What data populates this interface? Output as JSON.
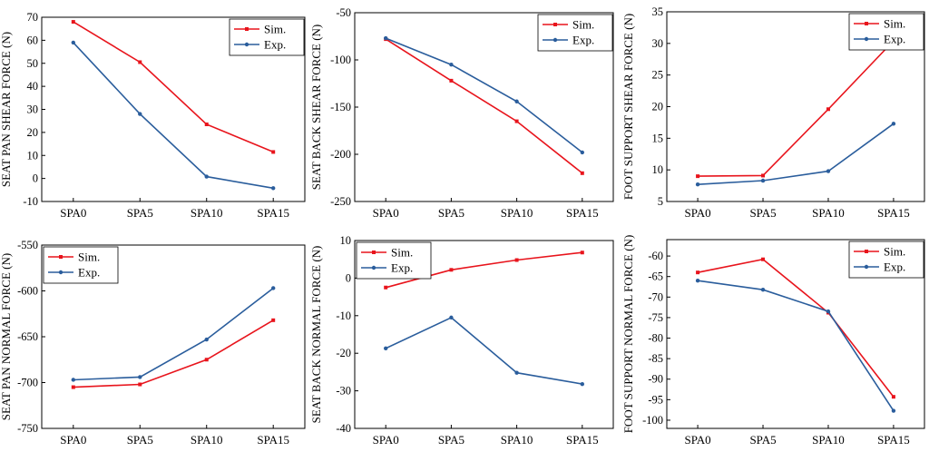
{
  "colors": {
    "sim": "#e8141c",
    "exp": "#2a5d9c",
    "axis": "#000000",
    "background": "#ffffff"
  },
  "chart_data": [
    {
      "type": "line",
      "ylabel": "SEAT PAN SHEAR FORCE (N)",
      "categories": [
        "SPA0",
        "SPA5",
        "SPA10",
        "SPA15"
      ],
      "ylim": [
        -10,
        70
      ],
      "yticks": [
        -10,
        0,
        10,
        20,
        30,
        40,
        50,
        60,
        70
      ],
      "ytick_labels": [
        "-10",
        "0",
        "10",
        "20",
        "30",
        "40",
        "50",
        "60",
        "70"
      ],
      "legend_position": "top-right",
      "series": [
        {
          "name": "Sim.",
          "values": [
            68,
            50.5,
            23.5,
            11.5
          ]
        },
        {
          "name": "Exp.",
          "values": [
            59,
            28,
            0.8,
            -4.2
          ]
        }
      ]
    },
    {
      "type": "line",
      "ylabel": "SEAT BACK SHEAR FORCE  (N)",
      "categories": [
        "SPA0",
        "SPA5",
        "SPA10",
        "SPA15"
      ],
      "ylim": [
        -250,
        -50
      ],
      "yticks": [
        -250,
        -200,
        -150,
        -100,
        -50
      ],
      "ytick_labels": [
        "-250",
        "-200",
        "-150",
        "-100",
        "-50"
      ],
      "legend_position": "top-right",
      "series": [
        {
          "name": "Sim.",
          "values": [
            -78,
            -122,
            -165,
            -220
          ]
        },
        {
          "name": "Exp.",
          "values": [
            -77,
            -105,
            -144,
            -198
          ]
        }
      ]
    },
    {
      "type": "line",
      "ylabel": "FOOT SUPPORT SHEAR FORCE (N)",
      "categories": [
        "SPA0",
        "SPA5",
        "SPA10",
        "SPA15"
      ],
      "ylim": [
        5,
        35
      ],
      "yticks": [
        5,
        10,
        15,
        20,
        25,
        30,
        35
      ],
      "ytick_labels": [
        "5",
        "10",
        "15",
        "20",
        "25",
        "30",
        "35"
      ],
      "legend_position": "top-right",
      "series": [
        {
          "name": "Sim.",
          "values": [
            9.0,
            9.1,
            19.6,
            30.4
          ]
        },
        {
          "name": "Exp.",
          "values": [
            7.7,
            8.3,
            9.8,
            17.3
          ]
        }
      ]
    },
    {
      "type": "line",
      "ylabel": "SEAT PAN NORMAL FORCE (N)",
      "categories": [
        "SPA0",
        "SPA5",
        "SPA10",
        "SPA15"
      ],
      "ylim": [
        -750,
        -550
      ],
      "yticks": [
        -750,
        -700,
        -650,
        -600,
        -550
      ],
      "ytick_labels": [
        "-750",
        "-700",
        "-650",
        "-600",
        "-550"
      ],
      "legend_position": "top-left",
      "series": [
        {
          "name": "Sim.",
          "values": [
            -705,
            -702,
            -675,
            -632
          ]
        },
        {
          "name": "Exp.",
          "values": [
            -697,
            -694,
            -653,
            -597
          ]
        }
      ]
    },
    {
      "type": "line",
      "ylabel": "SEAT BACK NORMAL FORCE  (N)",
      "categories": [
        "SPA0",
        "SPA5",
        "SPA10",
        "SPA15"
      ],
      "ylim": [
        -40,
        10
      ],
      "yticks": [
        -40,
        -30,
        -20,
        -10,
        0,
        10
      ],
      "ytick_labels": [
        "-40",
        "-30",
        "-20",
        "-10",
        "0",
        "10"
      ],
      "legend_position": "top-left",
      "series": [
        {
          "name": "Sim.",
          "values": [
            -2.5,
            2.2,
            4.8,
            6.8
          ]
        },
        {
          "name": "Exp.",
          "values": [
            -18.7,
            -10.5,
            -25.2,
            -28.2
          ]
        }
      ]
    },
    {
      "type": "line",
      "ylabel": "FOOT SUPPORT NORMAL FORCE (N)",
      "categories": [
        "SPA0",
        "SPA5",
        "SPA10",
        "SPA15"
      ],
      "ylim": [
        -102,
        -56
      ],
      "yticks": [
        -100,
        -95,
        -90,
        -85,
        -80,
        -75,
        -70,
        -65,
        -60
      ],
      "ytick_labels": [
        "-100",
        "-95",
        "-90",
        "-85",
        "-80",
        "-75",
        "-70",
        "-65",
        "-60"
      ],
      "legend_position": "top-right",
      "series": [
        {
          "name": "Sim.",
          "values": [
            -64,
            -60.8,
            -73.8,
            -94.3
          ]
        },
        {
          "name": "Exp.",
          "values": [
            -66,
            -68.2,
            -73.5,
            -97.7
          ]
        }
      ]
    }
  ]
}
